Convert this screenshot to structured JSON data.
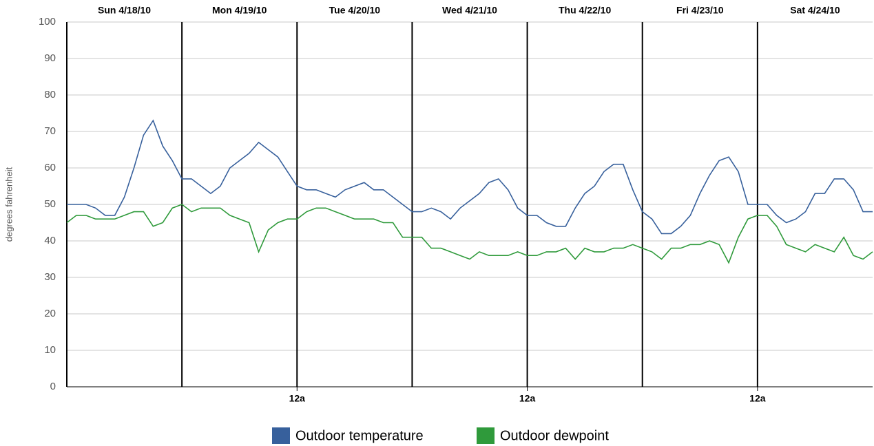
{
  "chart_data": {
    "type": "line",
    "y_label": "degrees fahrenheit",
    "day_labels": [
      "Sun 4/18/10",
      "Mon 4/19/10",
      "Tue 4/20/10",
      "Wed 4/21/10",
      "Thu 4/22/10",
      "Fri 4/23/10",
      "Sat 4/24/10"
    ],
    "x": [
      0,
      2,
      4,
      6,
      8,
      10,
      12,
      14,
      16,
      18,
      20,
      22,
      24,
      26,
      28,
      30,
      32,
      34,
      36,
      38,
      40,
      42,
      44,
      46,
      48,
      50,
      52,
      54,
      56,
      58,
      60,
      62,
      64,
      66,
      68,
      70,
      72,
      74,
      76,
      78,
      80,
      82,
      84,
      86,
      88,
      90,
      92,
      94,
      96,
      98,
      100,
      102,
      104,
      106,
      108,
      110,
      112,
      114,
      116,
      118,
      120,
      122,
      124,
      126,
      128,
      130,
      132,
      134,
      136,
      138,
      140,
      142,
      144,
      146,
      148,
      150,
      152,
      154,
      156,
      158,
      160,
      162,
      164,
      166,
      168
    ],
    "xlim": [
      0,
      168
    ],
    "xticks": [
      {
        "value": 48,
        "label": "12a"
      },
      {
        "value": 96,
        "label": "12a"
      },
      {
        "value": 144,
        "label": "12a"
      }
    ],
    "ylim": [
      0,
      100
    ],
    "yticks": [
      0,
      10,
      20,
      30,
      40,
      50,
      60,
      70,
      80,
      90,
      100
    ],
    "grid": true,
    "series": [
      {
        "name": "Outdoor temperature",
        "color": "#37609c",
        "values": [
          50,
          50,
          50,
          49,
          47,
          47,
          52,
          60,
          69,
          73,
          66,
          62,
          57,
          57,
          55,
          53,
          55,
          60,
          62,
          64,
          67,
          65,
          63,
          59,
          55,
          54,
          54,
          53,
          52,
          54,
          55,
          56,
          54,
          54,
          52,
          50,
          48,
          48,
          49,
          48,
          46,
          49,
          51,
          53,
          56,
          57,
          54,
          49,
          47,
          47,
          45,
          44,
          44,
          49,
          53,
          55,
          59,
          61,
          61,
          54,
          48,
          46,
          42,
          42,
          44,
          47,
          53,
          58,
          62,
          63,
          59,
          50,
          50,
          50,
          47,
          45,
          46,
          48,
          53,
          53,
          57,
          57,
          54,
          48,
          48
        ]
      },
      {
        "name": "Outdoor dewpoint",
        "color": "#2f9a3b",
        "values": [
          45,
          47,
          47,
          46,
          46,
          46,
          47,
          48,
          48,
          44,
          45,
          49,
          50,
          48,
          49,
          49,
          49,
          47,
          46,
          45,
          37,
          43,
          45,
          46,
          46,
          48,
          49,
          49,
          48,
          47,
          46,
          46,
          46,
          45,
          45,
          41,
          41,
          41,
          38,
          38,
          37,
          36,
          35,
          37,
          36,
          36,
          36,
          37,
          36,
          36,
          37,
          37,
          38,
          35,
          38,
          37,
          37,
          38,
          38,
          39,
          38,
          37,
          35,
          38,
          38,
          39,
          39,
          40,
          39,
          34,
          41,
          46,
          47,
          47,
          44,
          39,
          38,
          37,
          39,
          38,
          37,
          41,
          36,
          35,
          37
        ]
      }
    ]
  }
}
